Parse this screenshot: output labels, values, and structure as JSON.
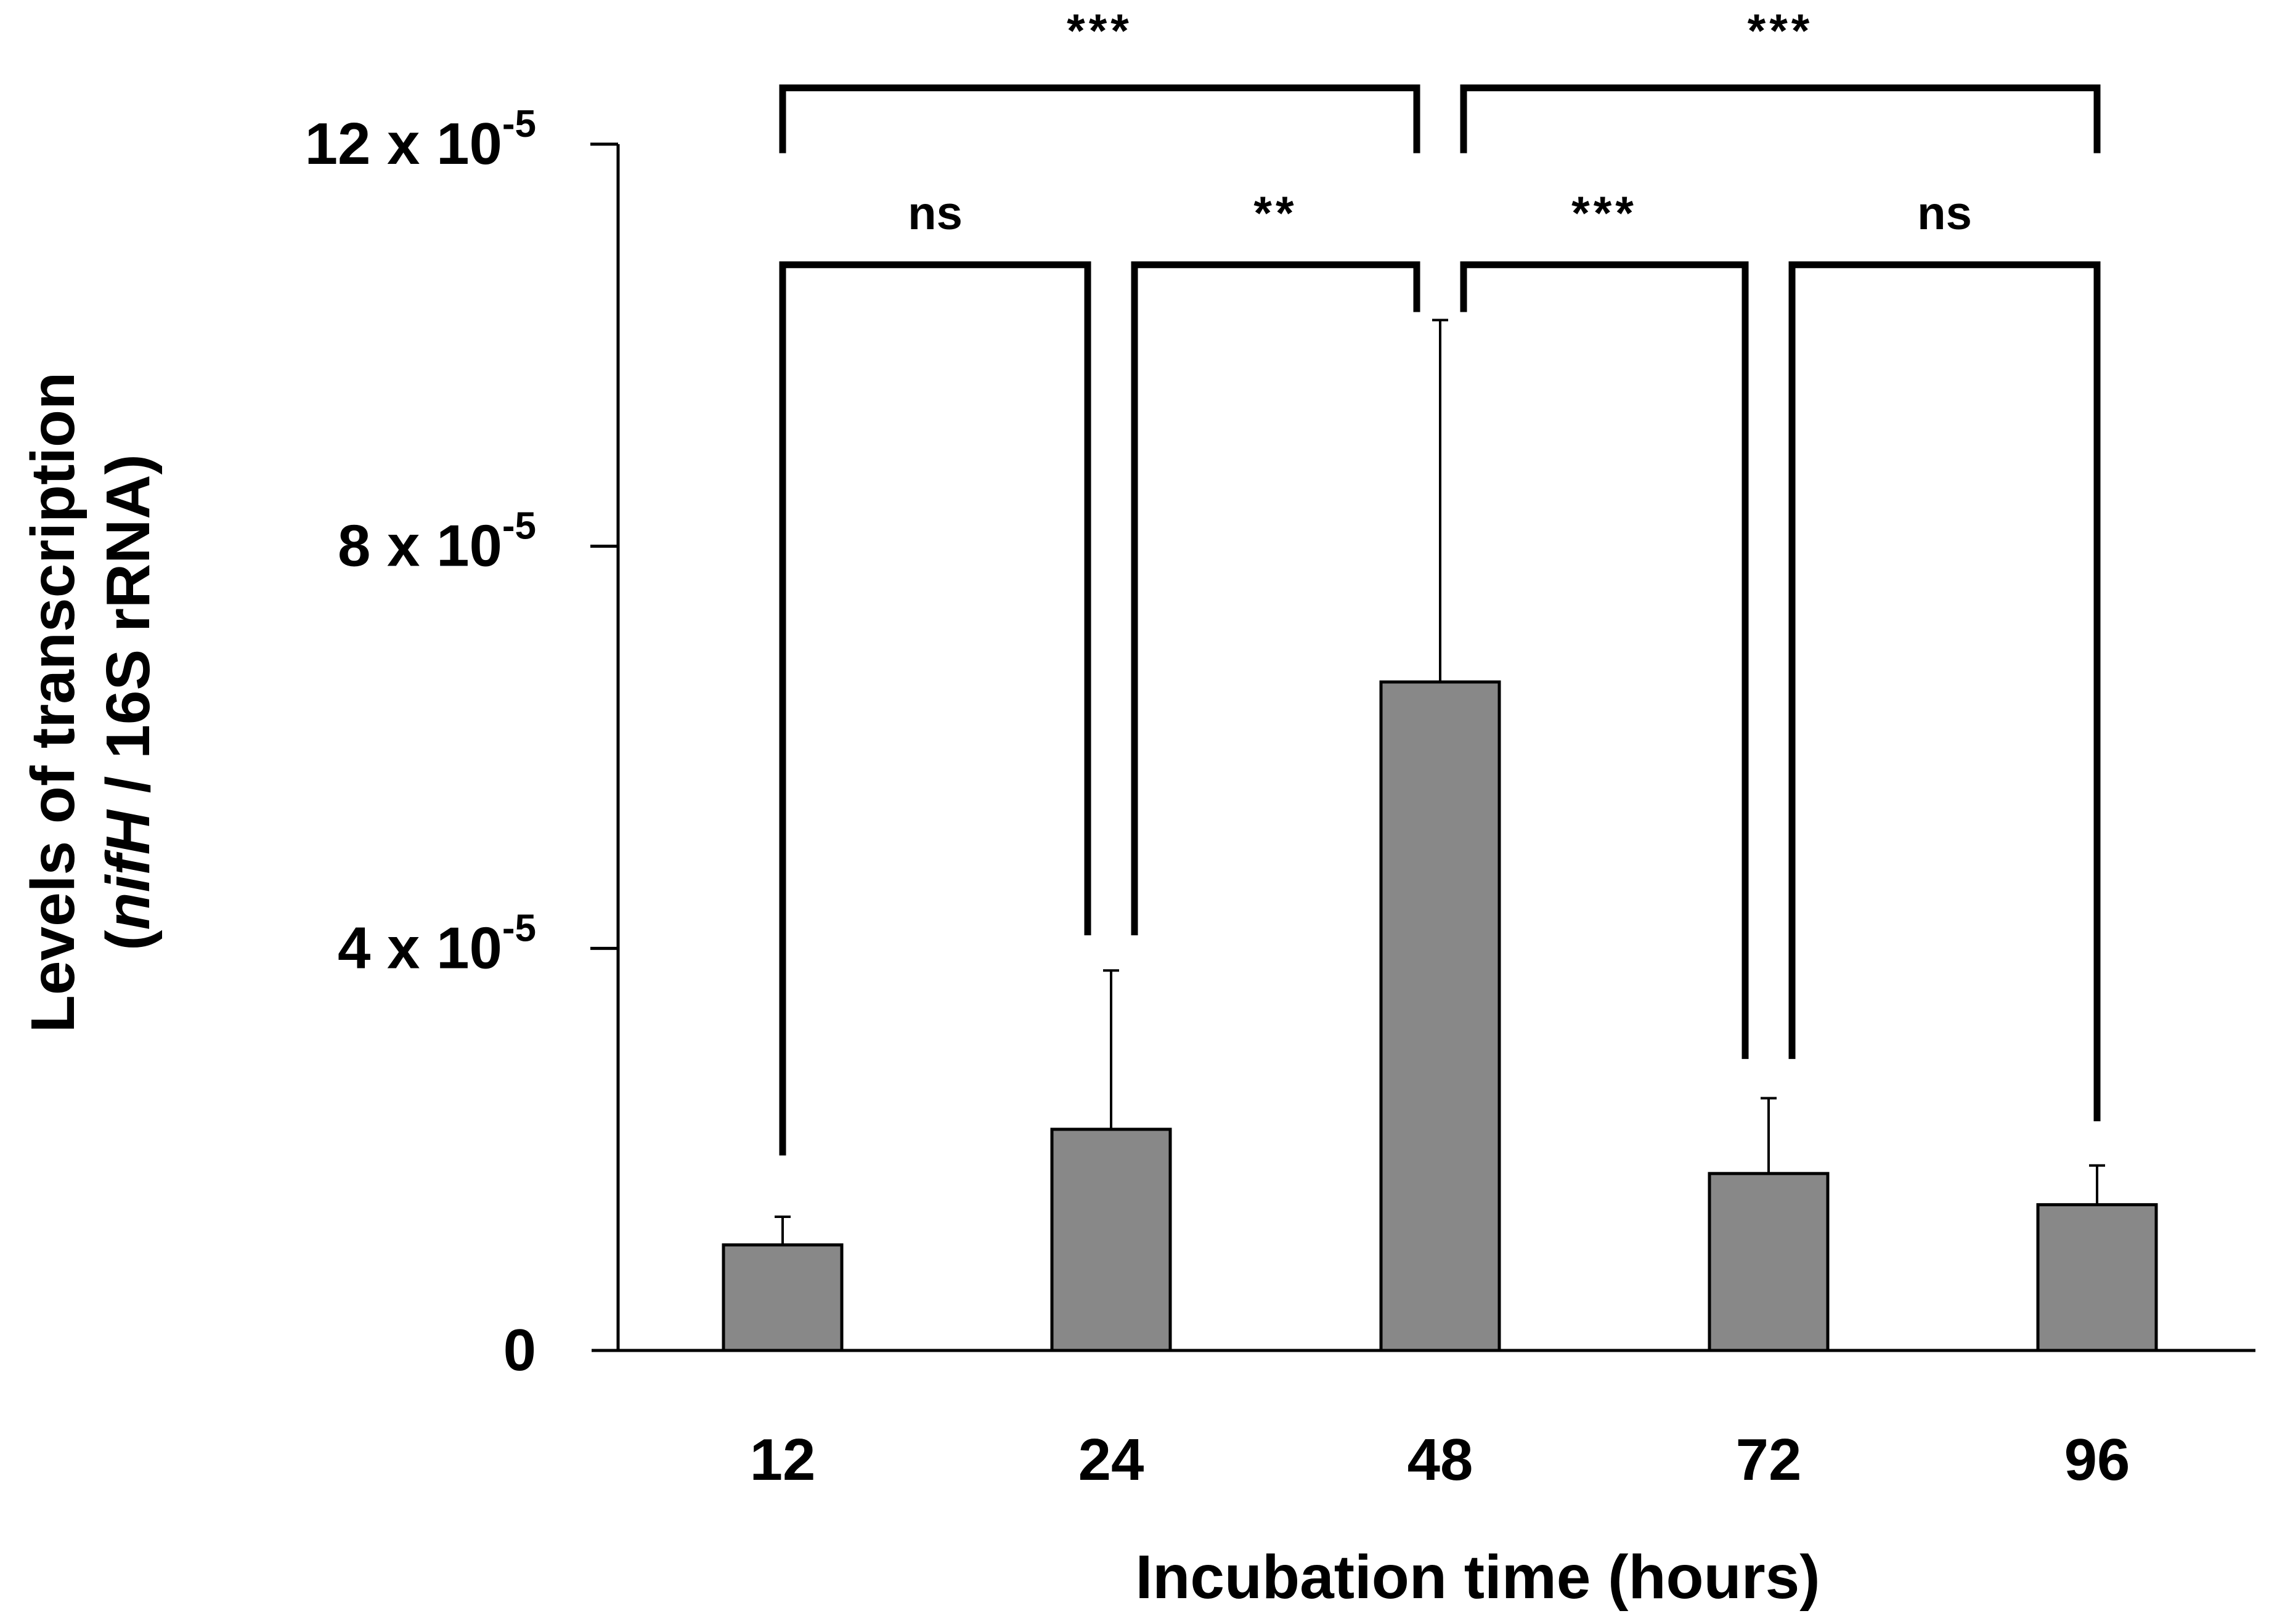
{
  "chart_data": {
    "type": "bar",
    "title": "",
    "xlabel": "Incubation time (hours)",
    "ylabel": {
      "line1": "Levels of transcription",
      "line2_parts": [
        {
          "text": "(",
          "italic": false
        },
        {
          "text": "nifH",
          "italic": true
        },
        {
          "text": " / 16S rRNA)",
          "italic": false
        }
      ]
    },
    "ylim": [
      0,
      0.00012
    ],
    "y_ticks": [
      {
        "value": 0,
        "label": "0"
      },
      {
        "value": 4e-05,
        "mantissa": "4 x 10",
        "exponent": "-5"
      },
      {
        "value": 8e-05,
        "mantissa": "8 x 10",
        "exponent": "-5"
      },
      {
        "value": 0.00012,
        "mantissa": "12 x 10",
        "exponent": "-5"
      }
    ],
    "categories": [
      "12",
      "24",
      "48",
      "72",
      "96"
    ],
    "values": [
      1.05e-05,
      2.2e-05,
      6.65e-05,
      1.76e-05,
      1.45e-05
    ],
    "error_upper": [
      1.33e-05,
      3.78e-05,
      0.0001025,
      2.51e-05,
      1.84e-05
    ],
    "bar_color": "#888888",
    "significance": [
      {
        "from": 0,
        "to": 1,
        "label": "ns",
        "level": "inner",
        "drop_from": 1.94e-05,
        "drop_to": 4.13e-05
      },
      {
        "from": 1,
        "to": 2,
        "label": "**",
        "level": "inner",
        "drop_from": 4.13e-05,
        "drop_to": 0.0001033
      },
      {
        "from": 2,
        "to": 3,
        "label": "***",
        "level": "inner",
        "drop_from": 0.0001033,
        "drop_to": 2.9e-05
      },
      {
        "from": 3,
        "to": 4,
        "label": "ns",
        "level": "inner",
        "drop_from": 2.9e-05,
        "drop_to": 2.28e-05
      },
      {
        "from": 0,
        "to": 2,
        "label": "***",
        "level": "outer",
        "drop_from": 0.0001191,
        "drop_to": 0.0001191
      },
      {
        "from": 2,
        "to": 4,
        "label": "***",
        "level": "outer",
        "drop_from": 0.0001191,
        "drop_to": 0.0001191
      }
    ]
  }
}
